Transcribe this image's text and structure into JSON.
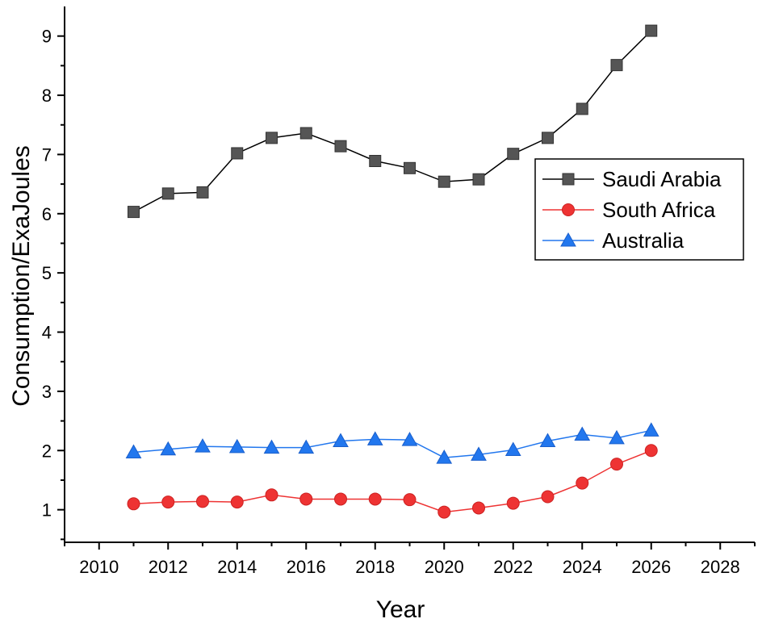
{
  "chart_data": {
    "type": "line",
    "title": "",
    "xlabel": "Year",
    "ylabel": "Consumption/ExaJoules",
    "xlim": [
      2009,
      2029
    ],
    "ylim": [
      0.45,
      9.5
    ],
    "xticks": [
      2010,
      2012,
      2014,
      2016,
      2018,
      2020,
      2022,
      2024,
      2026,
      2028
    ],
    "yticks": [
      1,
      2,
      3,
      4,
      5,
      6,
      7,
      8,
      9
    ],
    "x": [
      2011,
      2012,
      2013,
      2014,
      2015,
      2016,
      2017,
      2018,
      2019,
      2020,
      2021,
      2022,
      2023,
      2024,
      2025,
      2026
    ],
    "legend_position": "right",
    "grid": false,
    "series": [
      {
        "name": "Saudi Arabia",
        "marker": "square",
        "color": "#555555",
        "line_color": "#000000",
        "values": [
          6.03,
          6.34,
          6.36,
          7.02,
          7.28,
          7.36,
          7.14,
          6.89,
          6.77,
          6.54,
          6.58,
          7.01,
          7.28,
          7.77,
          8.51,
          9.09
        ]
      },
      {
        "name": "South Africa",
        "marker": "circle",
        "color": "#ee3333",
        "line_color": "#ee3333",
        "values": [
          1.1,
          1.13,
          1.14,
          1.13,
          1.25,
          1.18,
          1.18,
          1.18,
          1.17,
          0.96,
          1.03,
          1.11,
          1.22,
          1.45,
          1.77,
          2.0
        ]
      },
      {
        "name": "Australia",
        "marker": "triangle",
        "color": "#2277ee",
        "line_color": "#2277ee",
        "values": [
          1.97,
          2.02,
          2.07,
          2.06,
          2.05,
          2.05,
          2.16,
          2.19,
          2.18,
          1.88,
          1.93,
          2.01,
          2.16,
          2.27,
          2.21,
          2.34
        ]
      }
    ]
  }
}
